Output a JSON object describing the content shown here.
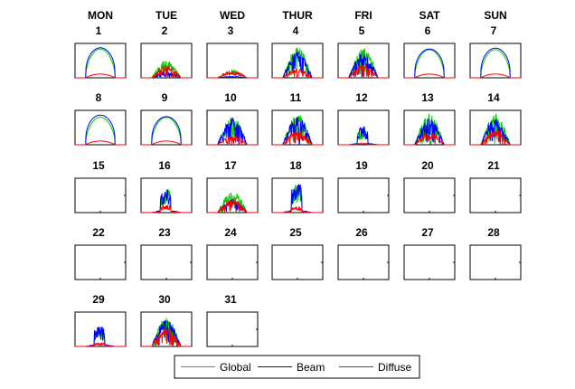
{
  "chart_data": {
    "type": "line",
    "title": "",
    "layout": "monthly-calendar-small-multiples",
    "weekday_headers": [
      "MON",
      "TUE",
      "WED",
      "THUR",
      "FRI",
      "SAT",
      "SUN"
    ],
    "days_in_month": 31,
    "first_weekday_index": 0,
    "series_styles": [
      {
        "name": "Global",
        "color": "#00cc00"
      },
      {
        "name": "Beam",
        "color": "#0000ff"
      },
      {
        "name": "Diffuse",
        "color": "#ff0000"
      }
    ],
    "legend": {
      "placement": "bottom-center",
      "entries": [
        "Global",
        "Beam",
        "Diffuse"
      ]
    },
    "x_axis": {
      "quantity": "hour of day",
      "range": [
        0,
        24
      ],
      "label": ""
    },
    "y_axis": {
      "quantity": "relative irradiance",
      "range": [
        0,
        1.1
      ],
      "label": ""
    },
    "daily_profiles": [
      {
        "day": 1,
        "kind": "clear",
        "global": 0.92,
        "beam": 0.96,
        "diffuse": 0.12
      },
      {
        "day": 2,
        "kind": "cloudy",
        "global": 0.55,
        "beam": 0.2,
        "diffuse": 0.4
      },
      {
        "day": 3,
        "kind": "overcast",
        "global": 0.25,
        "beam": 0.05,
        "diffuse": 0.22
      },
      {
        "day": 4,
        "kind": "variable",
        "global": 0.98,
        "beam": 0.85,
        "diffuse": 0.3
      },
      {
        "day": 5,
        "kind": "variable",
        "global": 0.95,
        "beam": 0.8,
        "diffuse": 0.45
      },
      {
        "day": 6,
        "kind": "clear",
        "global": 0.9,
        "beam": 0.92,
        "diffuse": 0.12
      },
      {
        "day": 7,
        "kind": "clear",
        "global": 0.9,
        "beam": 0.95,
        "diffuse": 0.12
      },
      {
        "day": 8,
        "kind": "clear",
        "global": 0.88,
        "beam": 0.95,
        "diffuse": 0.12
      },
      {
        "day": 9,
        "kind": "clear",
        "global": 0.88,
        "beam": 0.9,
        "diffuse": 0.12
      },
      {
        "day": 10,
        "kind": "variable",
        "global": 0.92,
        "beam": 0.88,
        "diffuse": 0.3
      },
      {
        "day": 11,
        "kind": "variable",
        "global": 1.0,
        "beam": 0.95,
        "diffuse": 0.45
      },
      {
        "day": 12,
        "kind": "partial",
        "global": 0.5,
        "beam": 0.6,
        "diffuse": 0.05
      },
      {
        "day": 13,
        "kind": "variable",
        "global": 1.0,
        "beam": 0.85,
        "diffuse": 0.4
      },
      {
        "day": 14,
        "kind": "cloudy",
        "global": 1.0,
        "beam": 0.85,
        "diffuse": 0.5
      },
      {
        "day": 15,
        "kind": "no-data"
      },
      {
        "day": 16,
        "kind": "partial",
        "global": 0.75,
        "beam": 0.8,
        "diffuse": 0.25
      },
      {
        "day": 17,
        "kind": "cloudy",
        "global": 0.7,
        "beam": 0.4,
        "diffuse": 0.45
      },
      {
        "day": 18,
        "kind": "partial",
        "global": 0.9,
        "beam": 0.95,
        "diffuse": 0.2
      },
      {
        "day": 19,
        "kind": "no-data"
      },
      {
        "day": 20,
        "kind": "no-data"
      },
      {
        "day": 21,
        "kind": "no-data"
      },
      {
        "day": 22,
        "kind": "no-data"
      },
      {
        "day": 23,
        "kind": "no-data"
      },
      {
        "day": 24,
        "kind": "no-data"
      },
      {
        "day": 25,
        "kind": "no-data"
      },
      {
        "day": 26,
        "kind": "no-data"
      },
      {
        "day": 27,
        "kind": "no-data"
      },
      {
        "day": 28,
        "kind": "no-data"
      },
      {
        "day": 29,
        "kind": "partial",
        "global": 0.65,
        "beam": 0.7,
        "diffuse": 0.12
      },
      {
        "day": 30,
        "kind": "variable",
        "global": 0.95,
        "beam": 0.85,
        "diffuse": 0.6
      },
      {
        "day": 31,
        "kind": "no-data"
      }
    ]
  }
}
